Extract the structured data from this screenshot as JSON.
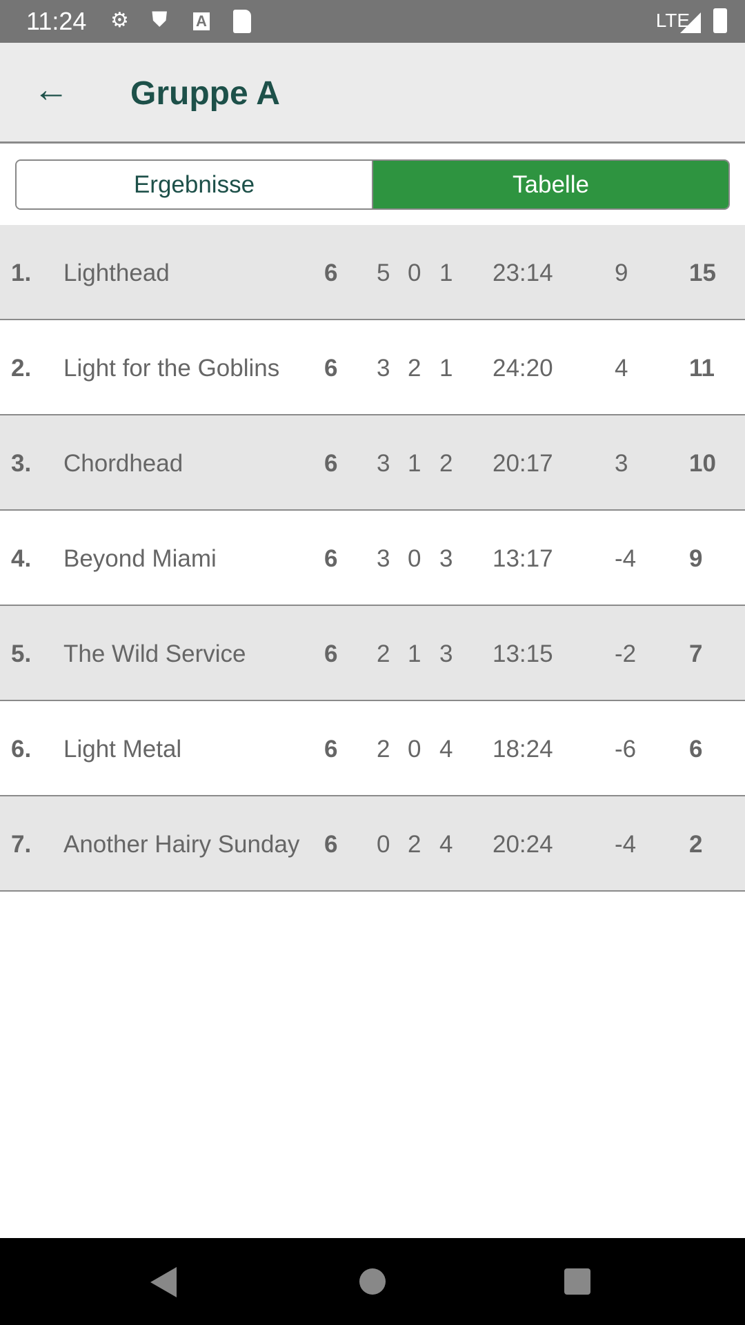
{
  "status": {
    "time": "11:24",
    "network": "LTE"
  },
  "header": {
    "title": "Gruppe A"
  },
  "tabs": [
    {
      "label": "Ergebnisse",
      "active": false
    },
    {
      "label": "Tabelle",
      "active": true
    }
  ],
  "colors": {
    "accent": "#2e9440",
    "title": "#1d5049"
  },
  "rows": [
    {
      "rank": "1.",
      "team": "Lighthead",
      "played": "6",
      "won": "5",
      "drawn": "0",
      "lost": "1",
      "goals": "23:14",
      "diff": "9",
      "points": "15"
    },
    {
      "rank": "2.",
      "team": "Light for the Goblins",
      "played": "6",
      "won": "3",
      "drawn": "2",
      "lost": "1",
      "goals": "24:20",
      "diff": "4",
      "points": "11"
    },
    {
      "rank": "3.",
      "team": "Chordhead",
      "played": "6",
      "won": "3",
      "drawn": "1",
      "lost": "2",
      "goals": "20:17",
      "diff": "3",
      "points": "10"
    },
    {
      "rank": "4.",
      "team": "Beyond Miami",
      "played": "6",
      "won": "3",
      "drawn": "0",
      "lost": "3",
      "goals": "13:17",
      "diff": "-4",
      "points": "9"
    },
    {
      "rank": "5.",
      "team": "The Wild Service",
      "played": "6",
      "won": "2",
      "drawn": "1",
      "lost": "3",
      "goals": "13:15",
      "diff": "-2",
      "points": "7"
    },
    {
      "rank": "6.",
      "team": "Light Metal",
      "played": "6",
      "won": "2",
      "drawn": "0",
      "lost": "4",
      "goals": "18:24",
      "diff": "-6",
      "points": "6"
    },
    {
      "rank": "7.",
      "team": "Another Hairy Sunday",
      "played": "6",
      "won": "0",
      "drawn": "2",
      "lost": "4",
      "goals": "20:24",
      "diff": "-4",
      "points": "2"
    }
  ]
}
